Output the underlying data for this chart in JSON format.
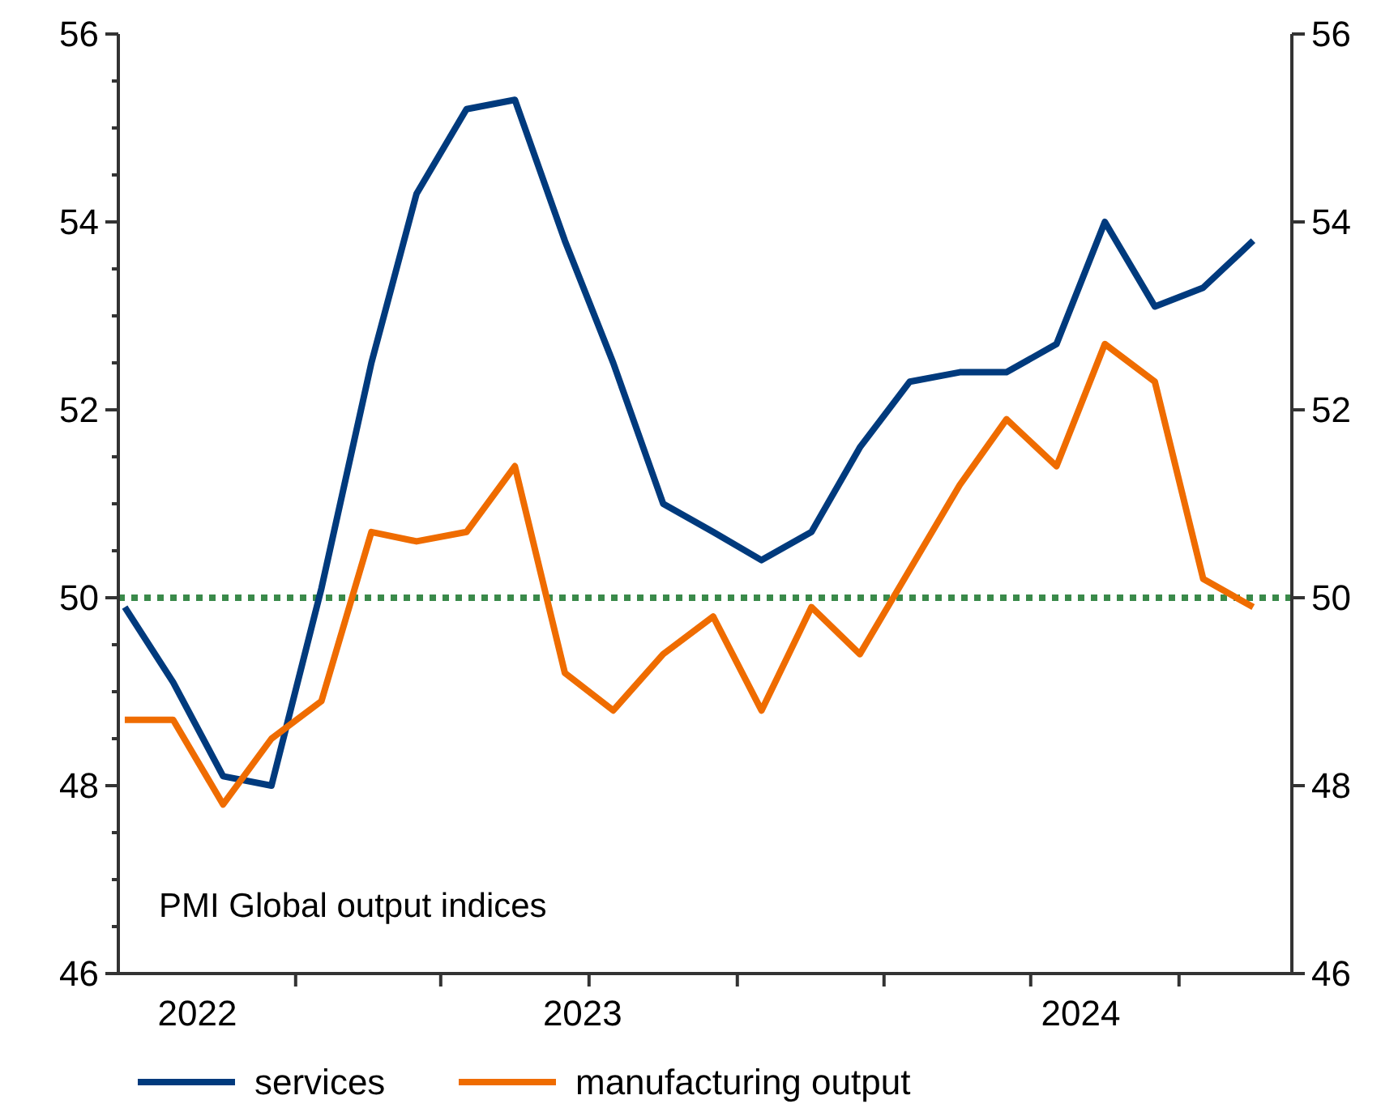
{
  "chart_data": {
    "type": "line",
    "annotations": [
      "PMI Global output indices"
    ],
    "x": [
      "2022-09",
      "2022-10",
      "2022-11",
      "2022-12",
      "2023-01",
      "2023-02",
      "2023-03",
      "2023-04",
      "2023-05",
      "2023-06",
      "2023-07",
      "2023-08",
      "2023-09",
      "2023-10",
      "2023-11",
      "2023-12",
      "2024-01",
      "2024-02",
      "2024-03",
      "2024-04",
      "2024-05",
      "2024-06",
      "2024-07",
      "2024-08"
    ],
    "series": [
      {
        "name": "services",
        "color": "#003a7d",
        "values": [
          49.9,
          49.1,
          48.1,
          48.0,
          50.1,
          52.5,
          54.3,
          55.2,
          55.3,
          53.8,
          52.5,
          51.0,
          50.7,
          50.4,
          50.7,
          51.6,
          52.3,
          52.4,
          52.4,
          52.7,
          54.0,
          53.1,
          53.3,
          53.8
        ]
      },
      {
        "name": "manufacturing output",
        "color": "#ef6c00",
        "values": [
          48.7,
          48.7,
          47.8,
          48.5,
          48.9,
          50.7,
          50.6,
          50.7,
          51.4,
          49.2,
          48.8,
          49.4,
          49.8,
          48.8,
          49.9,
          49.4,
          50.3,
          51.2,
          51.9,
          51.4,
          52.7,
          52.3,
          50.2,
          49.9
        ]
      }
    ],
    "xlim": [
      "2022-08-28",
      "2024-08-25"
    ],
    "xticks": [
      {
        "value": "2022-10-16",
        "label": "2022"
      },
      {
        "value": "2023-06-12",
        "label": "2023"
      },
      {
        "value": "2024-04-16",
        "label": "2024"
      },
      {
        "value": "2022-12-16",
        "label": null
      },
      {
        "value": "2023-03-16",
        "label": null
      },
      {
        "value": "2023-06-16",
        "label": null
      },
      {
        "value": "2023-09-16",
        "label": null
      },
      {
        "value": "2023-12-16",
        "label": null
      },
      {
        "value": "2024-03-16",
        "label": null
      },
      {
        "value": "2024-06-16",
        "label": null
      }
    ],
    "ylim": [
      46,
      56
    ],
    "yticks": [
      46,
      48,
      50,
      52,
      54,
      56,
      {
        "value": 46.5,
        "label": null
      },
      {
        "value": 47,
        "label": null
      },
      {
        "value": 47.5,
        "label": null
      },
      {
        "value": 48.5,
        "label": null
      },
      {
        "value": 49,
        "label": null
      },
      {
        "value": 49.5,
        "label": null
      },
      {
        "value": 50.5,
        "label": null
      },
      {
        "value": 51,
        "label": null
      },
      {
        "value": 51.5,
        "label": null
      },
      {
        "value": 52.5,
        "label": null
      },
      {
        "value": 53,
        "label": null
      },
      {
        "value": 53.5,
        "label": null
      },
      {
        "value": 54.5,
        "label": null
      },
      {
        "value": 55,
        "label": null
      },
      {
        "value": 55.5,
        "label": null
      }
    ],
    "y2lim": [
      46,
      56
    ],
    "y2ticks": [
      46,
      48,
      50,
      52,
      54,
      56
    ],
    "ref_lines": [
      {
        "axis": "y",
        "value": 50,
        "label": null,
        "color": "#3a8a4a",
        "line_style": "dotted"
      }
    ],
    "grid": false,
    "legend": "bottom",
    "marker": "none",
    "line_style": "solid"
  }
}
